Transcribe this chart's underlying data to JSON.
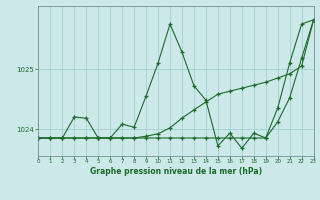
{
  "bg_color": "#cce8e8",
  "grid_color": "#99cccc",
  "line_color": "#1a6b2a",
  "title": "Graphe pression niveau de la mer (hPa)",
  "ytick_vals": [
    1024,
    1025
  ],
  "ylim": [
    1023.55,
    1026.05
  ],
  "xlim": [
    0,
    23
  ],
  "xtick_vals": [
    0,
    1,
    2,
    3,
    4,
    5,
    6,
    7,
    8,
    9,
    10,
    11,
    12,
    13,
    14,
    15,
    16,
    17,
    18,
    19,
    20,
    21,
    22,
    23
  ],
  "s1_x": [
    0,
    1,
    2,
    3,
    4,
    5,
    6,
    7,
    8,
    9,
    10,
    11,
    12,
    13,
    14,
    15,
    16,
    17,
    18,
    19,
    20,
    21,
    22,
    23
  ],
  "s1_y": [
    1023.85,
    1023.85,
    1023.85,
    1024.2,
    1024.18,
    1023.85,
    1023.85,
    1024.08,
    1024.03,
    1024.55,
    1025.1,
    1025.75,
    1025.28,
    1024.72,
    1024.48,
    1023.72,
    1023.93,
    1023.68,
    1023.93,
    1023.85,
    1024.35,
    1025.1,
    1025.75,
    1025.82
  ],
  "s2_x": [
    0,
    1,
    2,
    3,
    4,
    5,
    6,
    7,
    8,
    9,
    10,
    11,
    12,
    13,
    14,
    15,
    16,
    17,
    18,
    19,
    20,
    21,
    22,
    23
  ],
  "s2_y": [
    1023.85,
    1023.85,
    1023.85,
    1023.85,
    1023.85,
    1023.85,
    1023.85,
    1023.85,
    1023.85,
    1023.85,
    1023.85,
    1023.85,
    1023.85,
    1023.85,
    1023.85,
    1023.85,
    1023.85,
    1023.85,
    1023.85,
    1023.85,
    1024.12,
    1024.52,
    1025.18,
    1025.82
  ],
  "s3_x": [
    0,
    1,
    2,
    3,
    4,
    5,
    6,
    7,
    8,
    9,
    10,
    11,
    12,
    13,
    14,
    15,
    16,
    17,
    18,
    19,
    20,
    21,
    22,
    23
  ],
  "s3_y": [
    1023.85,
    1023.85,
    1023.85,
    1023.85,
    1023.85,
    1023.85,
    1023.85,
    1023.85,
    1023.85,
    1023.88,
    1023.92,
    1024.02,
    1024.18,
    1024.32,
    1024.45,
    1024.58,
    1024.63,
    1024.68,
    1024.73,
    1024.78,
    1024.85,
    1024.92,
    1025.05,
    1025.82
  ]
}
